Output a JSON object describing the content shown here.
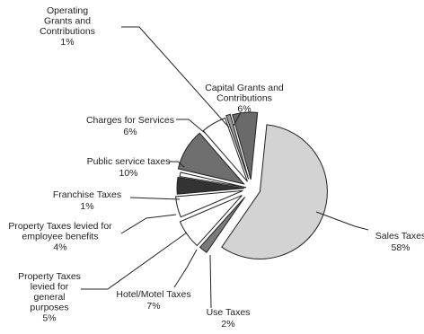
{
  "chart_data": {
    "type": "pie",
    "title": "",
    "exploded": true,
    "slices": [
      {
        "id": "sales",
        "label": [
          "Sales Taxes"
        ],
        "pct": "58%",
        "value": 58,
        "color": "#d3d3d3"
      },
      {
        "id": "use",
        "label": [
          "Use Taxes"
        ],
        "pct": "2%",
        "value": 2,
        "color": "#7a7a7a"
      },
      {
        "id": "hotel",
        "label": [
          "Hotel/Motel Taxes"
        ],
        "pct": "7%",
        "value": 7,
        "color": "#ffffff"
      },
      {
        "id": "propgen",
        "label": [
          "Property Taxes",
          "levied for",
          "general",
          "purposes"
        ],
        "pct": "5%",
        "value": 5,
        "color": "#ffffff"
      },
      {
        "id": "propemp",
        "label": [
          "Property Taxes levied for",
          "employee benefits"
        ],
        "pct": "4%",
        "value": 4,
        "color": "#333333"
      },
      {
        "id": "franchise",
        "label": [
          "Franchise Taxes"
        ],
        "pct": "1%",
        "value": 1,
        "color": "#ffffff"
      },
      {
        "id": "public",
        "label": [
          "Public service taxes"
        ],
        "pct": "10%",
        "value": 10,
        "color": "#6e6e6e"
      },
      {
        "id": "charges",
        "label": [
          "Charges for Services"
        ],
        "pct": "6%",
        "value": 6,
        "color": "#ffffff"
      },
      {
        "id": "opgrants",
        "label": [
          "Operating",
          "Grants and",
          "Contributions"
        ],
        "pct": "1%",
        "value": 1,
        "color": "#9a9a9a"
      },
      {
        "id": "capgrants",
        "label": [
          "Capital Grants and",
          "Contributions"
        ],
        "pct": "6%",
        "value": 6,
        "color": "#6a6a6a"
      }
    ]
  }
}
